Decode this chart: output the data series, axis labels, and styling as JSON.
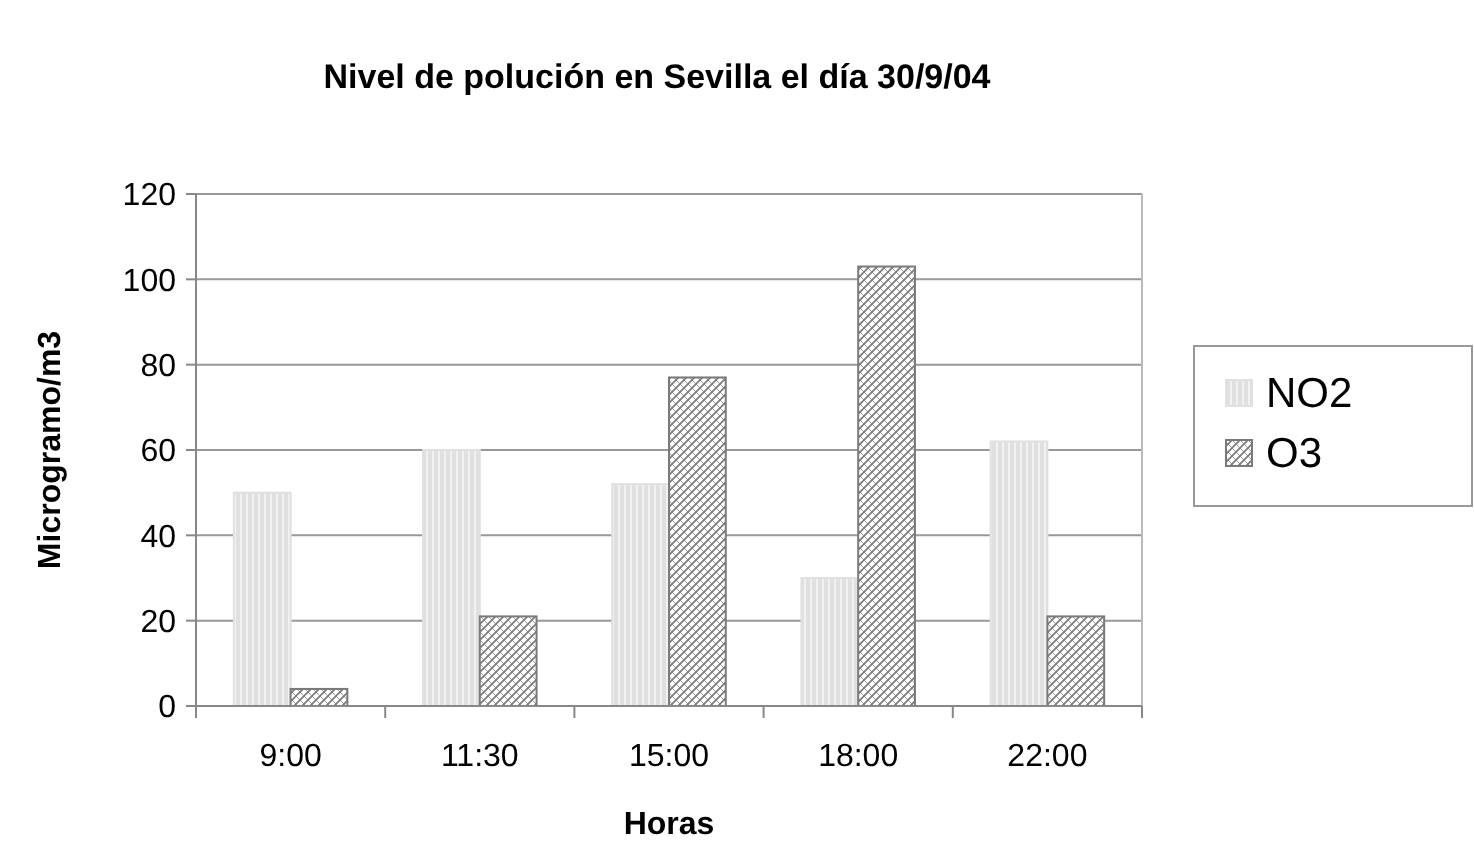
{
  "chart_data": {
    "type": "bar",
    "title": "Nivel de polución en Sevilla el día 30/9/04",
    "xlabel": "Horas",
    "ylabel": "Microgramo/m3",
    "categories": [
      "9:00",
      "11:30",
      "15:00",
      "18:00",
      "22:00"
    ],
    "series": [
      {
        "name": "NO2",
        "color": "#e0e0e0",
        "values": [
          50,
          60,
          52,
          30,
          62
        ]
      },
      {
        "name": "O3",
        "color": "#7a7a7a",
        "values": [
          4,
          21,
          77,
          103,
          21
        ]
      }
    ],
    "ylim": [
      0,
      120
    ],
    "yticks": [
      0,
      20,
      40,
      60,
      80,
      100,
      120
    ],
    "grid": "y",
    "legend": "right"
  }
}
